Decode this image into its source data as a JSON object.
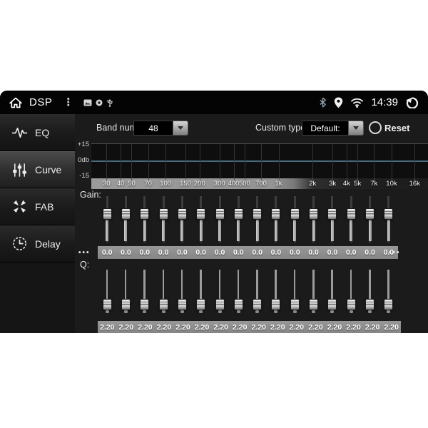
{
  "status_bar": {
    "app_label": "DSP",
    "overflow": "⋮",
    "time": "14:39",
    "icons_left": [
      "home-icon",
      "overflow-menu-icon",
      "image-icon",
      "disc-icon",
      "usb-icon"
    ],
    "icons_right": [
      "bluetooth-icon",
      "location-icon",
      "wifi-icon",
      "back-icon"
    ]
  },
  "sidebar": {
    "items": [
      {
        "label": "EQ",
        "icon": "eq-waveform-icon",
        "selected": false
      },
      {
        "label": "Curve",
        "icon": "curve-sliders-icon",
        "selected": true
      },
      {
        "label": "FAB",
        "icon": "fab-speakers-icon",
        "selected": false
      },
      {
        "label": "Delay",
        "icon": "delay-clock-icon",
        "selected": false
      }
    ]
  },
  "controls": {
    "band_num_label": "Band num:",
    "band_num_value": "48",
    "custom_type_label": "Custom type:",
    "custom_type_value": "Default:",
    "reset_label": "Reset"
  },
  "graph": {
    "y_axis": [
      "+15",
      "0db",
      "-15"
    ],
    "freq_ticks": [
      "30",
      "40",
      "50",
      "70",
      "100",
      "150",
      "200",
      "300",
      "400",
      "500",
      "700",
      "1k",
      "2k",
      "3k",
      "4k",
      "5k",
      "7k",
      "10k",
      "16k"
    ],
    "curve_level_db": 0
  },
  "gain": {
    "label": "Gain:",
    "more_left": "•••",
    "more_right": "•••",
    "values": [
      "0.0",
      "0.0",
      "0.0",
      "0.0",
      "0.0",
      "0.0",
      "0.0",
      "0.0",
      "0.0",
      "0.0",
      "0.0",
      "0.0",
      "0.0",
      "0.0",
      "0.0",
      "0.0"
    ]
  },
  "q": {
    "label": "Q:",
    "values": [
      "2.20",
      "2.20",
      "2.20",
      "2.20",
      "2.20",
      "2.20",
      "2.20",
      "2.20",
      "2.20",
      "2.20",
      "2.20",
      "2.20",
      "2.20",
      "2.20",
      "2.20",
      "2.20"
    ]
  },
  "colors": {
    "zero_line": "#486c7e",
    "value_bar": "#8c8c8c",
    "screen_bg": "#181818"
  }
}
